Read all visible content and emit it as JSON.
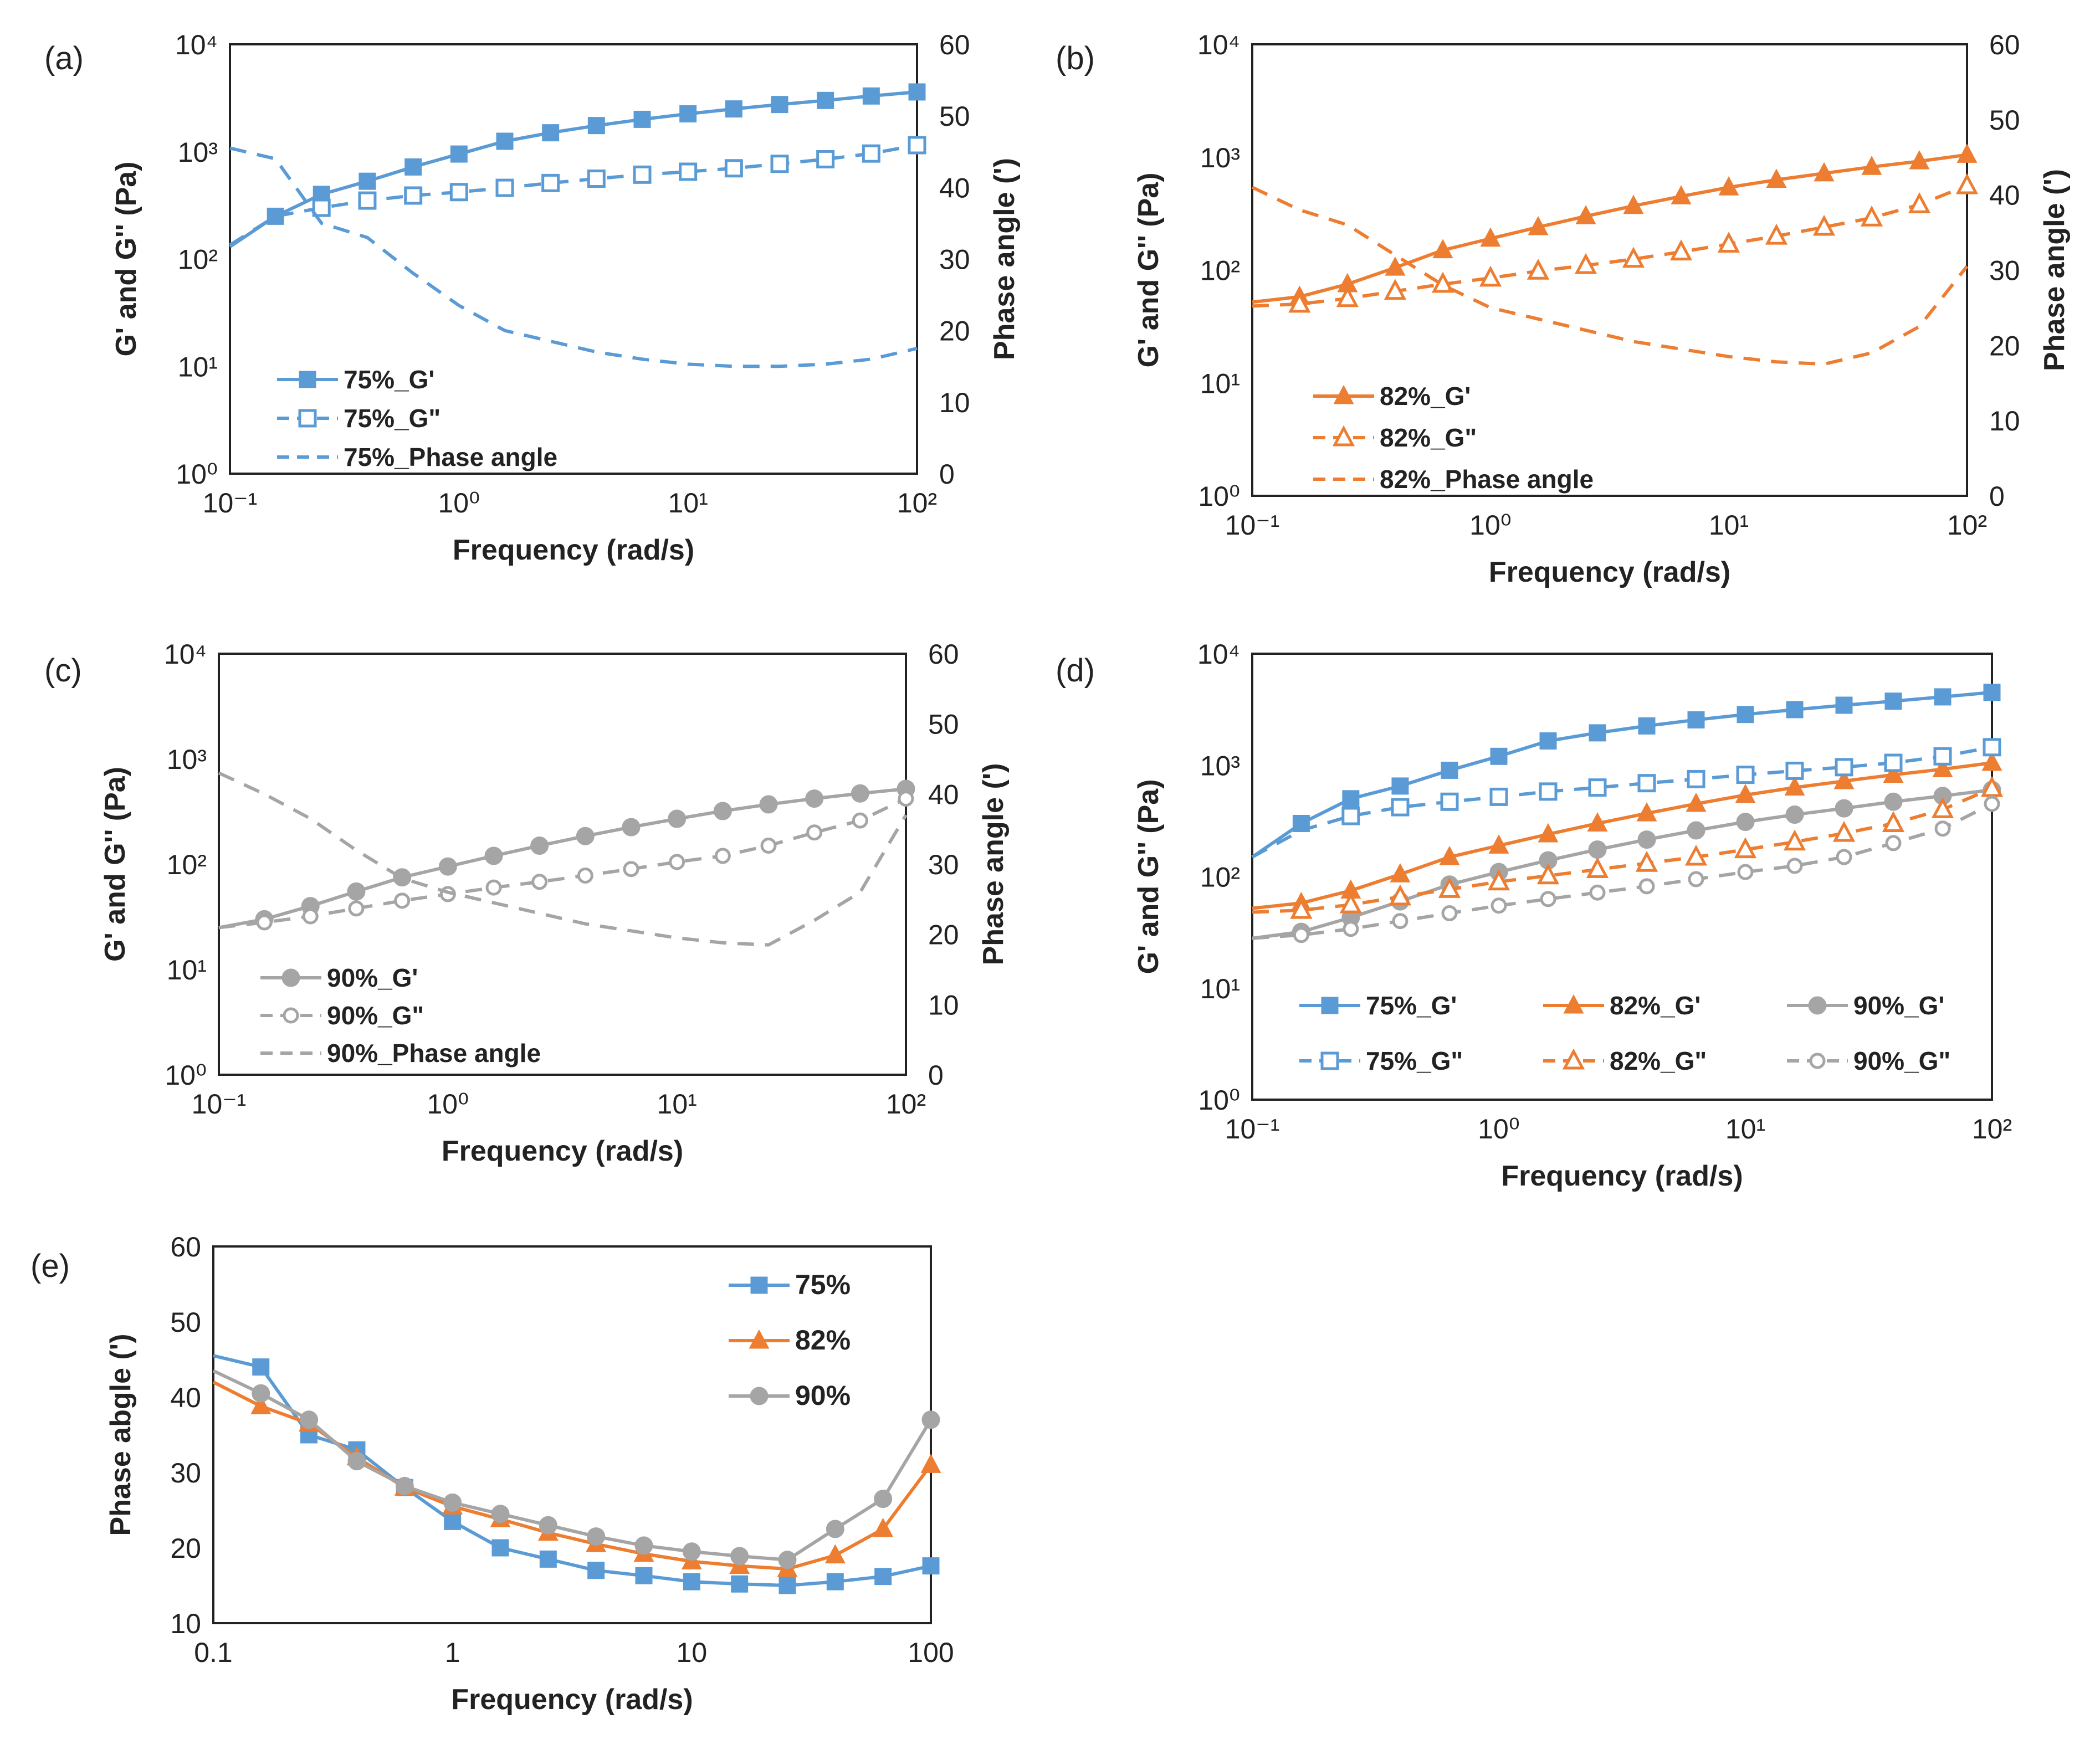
{
  "chart_data": [
    {
      "id": "a",
      "panel_label": "(a)",
      "type": "line",
      "xscale": "log",
      "xlim": [
        0.1,
        100
      ],
      "ylim_left": [
        1,
        10000
      ],
      "ylim_right": [
        0,
        60
      ],
      "xlabel": "Frequency (rad/s)",
      "ylabel_left": "G' and G'' (Pa)",
      "ylabel_right": "Phase angle (')",
      "x_tick_values": [
        0.1,
        1,
        10,
        100
      ],
      "x_tick_labels": [
        "10⁻¹",
        "10⁰",
        "10¹",
        "10²"
      ],
      "y_tick_values": [
        1,
        10,
        100,
        1000,
        10000
      ],
      "y_tick_labels": [
        "10⁰",
        "10¹",
        "10²",
        "10³",
        "10⁴"
      ],
      "y_right_tick_values": [
        0,
        10,
        20,
        30,
        40,
        50,
        60
      ],
      "y_right_tick_labels": [
        "0",
        "10",
        "20",
        "30",
        "40",
        "50",
        "60"
      ],
      "legend_position": "bottom-left",
      "series": [
        {
          "name": "75%_G'",
          "axis": "left",
          "color": "#5B9BD5",
          "dash": "solid",
          "marker": "square",
          "filled": true,
          "x": [
            0.1,
            0.158,
            0.251,
            0.398,
            0.631,
            1.0,
            1.585,
            2.512,
            3.981,
            6.31,
            10,
            15.85,
            25.12,
            39.81,
            63.1,
            100
          ],
          "y": [
            130,
            250,
            400,
            530,
            720,
            950,
            1250,
            1500,
            1750,
            2000,
            2250,
            2500,
            2750,
            3000,
            3300,
            3600
          ],
          "marker_from": 1
        },
        {
          "name": "75%_G\"",
          "axis": "left",
          "color": "#5B9BD5",
          "dash": "dashed",
          "marker": "square",
          "filled": false,
          "x": [
            0.1,
            0.158,
            0.251,
            0.398,
            0.631,
            1.0,
            1.585,
            2.512,
            3.981,
            6.31,
            10,
            15.85,
            25.12,
            39.81,
            63.1,
            100
          ],
          "y": [
            135,
            250,
            300,
            350,
            390,
            420,
            460,
            510,
            560,
            610,
            650,
            700,
            770,
            850,
            960,
            1150
          ],
          "marker_from": 2
        },
        {
          "name": "75%_Phase angle",
          "axis": "right",
          "color": "#5B9BD5",
          "dash": "dashed",
          "marker": "none",
          "filled": false,
          "x": [
            0.1,
            0.158,
            0.251,
            0.398,
            0.631,
            1.0,
            1.585,
            2.512,
            3.981,
            6.31,
            10,
            15.85,
            25.12,
            39.81,
            63.1,
            100
          ],
          "y": [
            45.5,
            44,
            35,
            33,
            28,
            23.5,
            20,
            18.5,
            17,
            16,
            15.3,
            15,
            15,
            15.3,
            16,
            17.5
          ],
          "marker_from": 99
        }
      ]
    },
    {
      "id": "b",
      "panel_label": "(b)",
      "type": "line",
      "xscale": "log",
      "xlim": [
        0.1,
        100
      ],
      "ylim_left": [
        1,
        10000
      ],
      "ylim_right": [
        0,
        60
      ],
      "xlabel": "Frequency (rad/s)",
      "ylabel_left": "G' and G'' (Pa)",
      "ylabel_right": "Phase angle (')",
      "x_tick_values": [
        0.1,
        1,
        10,
        100
      ],
      "x_tick_labels": [
        "10⁻¹",
        "10⁰",
        "10¹",
        "10²"
      ],
      "y_tick_values": [
        1,
        10,
        100,
        1000,
        10000
      ],
      "y_tick_labels": [
        "10⁰",
        "10¹",
        "10²",
        "10³",
        "10⁴"
      ],
      "y_right_tick_values": [
        0,
        10,
        20,
        30,
        40,
        50,
        60
      ],
      "y_right_tick_labels": [
        "0",
        "10",
        "20",
        "30",
        "40",
        "50",
        "60"
      ],
      "legend_position": "bottom-left",
      "series": [
        {
          "name": "82%_G'",
          "axis": "left",
          "color": "#ED7D31",
          "dash": "solid",
          "marker": "triangle",
          "filled": true,
          "x": [
            0.1,
            0.158,
            0.251,
            0.398,
            0.631,
            1.0,
            1.585,
            2.512,
            3.981,
            6.31,
            10,
            15.85,
            25.12,
            39.81,
            63.1,
            100
          ],
          "y": [
            52,
            58,
            75,
            105,
            150,
            190,
            240,
            300,
            370,
            450,
            540,
            630,
            720,
            820,
            920,
            1050
          ],
          "marker_from": 1
        },
        {
          "name": "82%_G\"",
          "axis": "left",
          "color": "#ED7D31",
          "dash": "dashed",
          "marker": "triangle",
          "filled": false,
          "x": [
            0.1,
            0.158,
            0.251,
            0.398,
            0.631,
            1.0,
            1.585,
            2.512,
            3.981,
            6.31,
            10,
            15.85,
            25.12,
            39.81,
            63.1,
            100
          ],
          "y": [
            48,
            50,
            56,
            65,
            75,
            85,
            98,
            110,
            125,
            145,
            170,
            200,
            240,
            290,
            380,
            560
          ],
          "marker_from": 1
        },
        {
          "name": "82%_Phase angle",
          "axis": "right",
          "color": "#ED7D31",
          "dash": "dashed",
          "marker": "none",
          "filled": false,
          "x": [
            0.1,
            0.158,
            0.251,
            0.398,
            0.631,
            1.0,
            1.585,
            2.512,
            3.981,
            6.31,
            10,
            15.85,
            25.12,
            39.81,
            63.1,
            100
          ],
          "y": [
            41,
            38,
            36,
            32,
            28,
            25,
            23.5,
            22,
            20.5,
            19.5,
            18.5,
            17.8,
            17.5,
            19,
            22.5,
            30.5
          ],
          "marker_from": 99
        }
      ]
    },
    {
      "id": "c",
      "panel_label": "(c)",
      "type": "line",
      "xscale": "log",
      "xlim": [
        0.1,
        100
      ],
      "ylim_left": [
        1,
        10000
      ],
      "ylim_right": [
        0,
        60
      ],
      "xlabel": "Frequency (rad/s)",
      "ylabel_left": "G' and G'' (Pa)",
      "ylabel_right": "Phase angle (')",
      "x_tick_values": [
        0.1,
        1,
        10,
        100
      ],
      "x_tick_labels": [
        "10⁻¹",
        "10⁰",
        "10¹",
        "10²"
      ],
      "y_tick_values": [
        1,
        10,
        100,
        1000,
        10000
      ],
      "y_tick_labels": [
        "10⁰",
        "10¹",
        "10²",
        "10³",
        "10⁴"
      ],
      "y_right_tick_values": [
        0,
        10,
        20,
        30,
        40,
        50,
        60
      ],
      "y_right_tick_labels": [
        "0",
        "10",
        "20",
        "30",
        "40",
        "50",
        "60"
      ],
      "legend_position": "bottom-left",
      "series": [
        {
          "name": "90%_G'",
          "axis": "left",
          "color": "#A5A5A5",
          "dash": "solid",
          "marker": "circle",
          "filled": true,
          "x": [
            0.1,
            0.158,
            0.251,
            0.398,
            0.631,
            1.0,
            1.585,
            2.512,
            3.981,
            6.31,
            10,
            15.85,
            25.12,
            39.81,
            63.1,
            100
          ],
          "y": [
            25,
            30,
            40,
            55,
            75,
            95,
            120,
            150,
            185,
            225,
            270,
            320,
            370,
            420,
            470,
            520
          ],
          "marker_from": 1
        },
        {
          "name": "90%_G\"",
          "axis": "left",
          "color": "#A5A5A5",
          "dash": "dashed",
          "marker": "circle",
          "filled": false,
          "x": [
            0.1,
            0.158,
            0.251,
            0.398,
            0.631,
            1.0,
            1.585,
            2.512,
            3.981,
            6.31,
            10,
            15.85,
            25.12,
            39.81,
            63.1,
            100
          ],
          "y": [
            25,
            28,
            32,
            38,
            45,
            52,
            60,
            68,
            78,
            90,
            105,
            120,
            150,
            200,
            260,
            420
          ],
          "marker_from": 1
        },
        {
          "name": "90%_Phase angle",
          "axis": "right",
          "color": "#A5A5A5",
          "dash": "dashed",
          "marker": "none",
          "filled": false,
          "x": [
            0.1,
            0.158,
            0.251,
            0.398,
            0.631,
            1.0,
            1.585,
            2.512,
            3.981,
            6.31,
            10,
            15.85,
            25.12,
            39.81,
            63.1,
            100
          ],
          "y": [
            43,
            40,
            36.5,
            32,
            28,
            26,
            24.5,
            23,
            21.5,
            20.5,
            19.5,
            18.8,
            18.5,
            22,
            26,
            37
          ],
          "marker_from": 99
        }
      ]
    },
    {
      "id": "d",
      "panel_label": "(d)",
      "type": "line",
      "xscale": "log",
      "xlim": [
        0.1,
        100
      ],
      "ylim_left": [
        1,
        10000
      ],
      "xlabel": "Frequency (rad/s)",
      "ylabel_left": "G' and G'' (Pa)",
      "x_tick_values": [
        0.1,
        1,
        10,
        100
      ],
      "x_tick_labels": [
        "10⁻¹",
        "10⁰",
        "10¹",
        "10²"
      ],
      "y_tick_values": [
        1,
        10,
        100,
        1000,
        10000
      ],
      "y_tick_labels": [
        "10⁰",
        "10¹",
        "10²",
        "10³",
        "10⁴"
      ],
      "legend_position": "bottom, 3 columns",
      "series": [
        {
          "name": "75%_G'",
          "axis": "left",
          "color": "#5B9BD5",
          "dash": "solid",
          "marker": "square",
          "filled": true,
          "x": [
            0.1,
            0.158,
            0.251,
            0.398,
            0.631,
            1.0,
            1.585,
            2.512,
            3.981,
            6.31,
            10,
            15.85,
            25.12,
            39.81,
            63.1,
            100
          ],
          "y": [
            150,
            300,
            500,
            650,
            900,
            1200,
            1650,
            1950,
            2250,
            2550,
            2850,
            3150,
            3450,
            3750,
            4100,
            4500
          ],
          "marker_from": 1
        },
        {
          "name": "82%_G'",
          "axis": "left",
          "color": "#ED7D31",
          "dash": "solid",
          "marker": "triangle",
          "filled": true,
          "x": [
            0.1,
            0.158,
            0.251,
            0.398,
            0.631,
            1.0,
            1.585,
            2.512,
            3.981,
            6.31,
            10,
            15.85,
            25.12,
            39.81,
            63.1,
            100
          ],
          "y": [
            52,
            58,
            75,
            105,
            150,
            190,
            240,
            300,
            370,
            450,
            540,
            630,
            720,
            820,
            920,
            1050
          ],
          "marker_from": 1
        },
        {
          "name": "90%_G'",
          "axis": "left",
          "color": "#A5A5A5",
          "dash": "solid",
          "marker": "circle",
          "filled": true,
          "x": [
            0.1,
            0.158,
            0.251,
            0.398,
            0.631,
            1.0,
            1.585,
            2.512,
            3.981,
            6.31,
            10,
            15.85,
            25.12,
            39.81,
            63.1,
            100
          ],
          "y": [
            28,
            32,
            43,
            60,
            85,
            110,
            140,
            175,
            215,
            260,
            310,
            360,
            410,
            470,
            530,
            600
          ],
          "marker_from": 1
        },
        {
          "name": "75%_G\"",
          "axis": "left",
          "color": "#5B9BD5",
          "dash": "dashed",
          "marker": "square",
          "filled": false,
          "x": [
            0.1,
            0.158,
            0.251,
            0.398,
            0.631,
            1.0,
            1.585,
            2.512,
            3.981,
            6.31,
            10,
            15.85,
            25.12,
            39.81,
            63.1,
            100
          ],
          "y": [
            150,
            260,
            350,
            420,
            470,
            520,
            580,
            630,
            690,
            750,
            820,
            890,
            960,
            1050,
            1200,
            1450
          ],
          "marker_from": 2
        },
        {
          "name": "82%_G\"",
          "axis": "left",
          "color": "#ED7D31",
          "dash": "dashed",
          "marker": "triangle",
          "filled": false,
          "x": [
            0.1,
            0.158,
            0.251,
            0.398,
            0.631,
            1.0,
            1.585,
            2.512,
            3.981,
            6.31,
            10,
            15.85,
            25.12,
            39.81,
            63.1,
            100
          ],
          "y": [
            48,
            50,
            56,
            66,
            77,
            90,
            102,
            116,
            132,
            150,
            175,
            205,
            245,
            300,
            400,
            620
          ],
          "marker_from": 1
        },
        {
          "name": "90%_G\"",
          "axis": "left",
          "color": "#A5A5A5",
          "dash": "dashed",
          "marker": "circle",
          "filled": false,
          "x": [
            0.1,
            0.158,
            0.251,
            0.398,
            0.631,
            1.0,
            1.585,
            2.512,
            3.981,
            6.31,
            10,
            15.85,
            25.12,
            39.81,
            63.1,
            100
          ],
          "y": [
            28,
            30,
            34,
            40,
            47,
            55,
            63,
            72,
            82,
            95,
            110,
            125,
            150,
            200,
            270,
            450
          ],
          "marker_from": 1
        }
      ]
    },
    {
      "id": "e",
      "panel_label": "(e)",
      "type": "line",
      "xscale": "log",
      "xlim": [
        0.1,
        100
      ],
      "ylim_left": [
        10,
        60
      ],
      "xlabel": "Frequency (rad/s)",
      "ylabel_left": "Phase abgle (')",
      "x_tick_values": [
        0.1,
        1,
        10,
        100
      ],
      "x_tick_labels": [
        "0.1",
        "1",
        "10",
        "100"
      ],
      "y_tick_values": [
        10,
        20,
        30,
        40,
        50,
        60
      ],
      "y_tick_labels": [
        "10",
        "20",
        "30",
        "40",
        "50",
        "60"
      ],
      "legend_position": "top-right",
      "series": [
        {
          "name": "75%",
          "axis": "left",
          "color": "#5B9BD5",
          "dash": "solid",
          "marker": "square",
          "filled": true,
          "x": [
            0.1,
            0.158,
            0.251,
            0.398,
            0.631,
            1.0,
            1.585,
            2.512,
            3.981,
            6.31,
            10,
            15.85,
            25.12,
            39.81,
            63.1,
            100
          ],
          "y": [
            45.5,
            44,
            35,
            33,
            28,
            23.5,
            20,
            18.5,
            17,
            16.3,
            15.5,
            15.2,
            15,
            15.5,
            16.2,
            17.6
          ],
          "marker_from": 1
        },
        {
          "name": "82%",
          "axis": "left",
          "color": "#ED7D31",
          "dash": "solid",
          "marker": "triangle",
          "filled": true,
          "x": [
            0.1,
            0.158,
            0.251,
            0.398,
            0.631,
            1.0,
            1.585,
            2.512,
            3.981,
            6.31,
            10,
            15.85,
            25.12,
            39.81,
            63.1,
            100
          ],
          "y": [
            42,
            38.8,
            36.5,
            32,
            28,
            25.5,
            23.8,
            22,
            20.5,
            19.2,
            18.2,
            17.6,
            17.2,
            19,
            22.5,
            31
          ],
          "marker_from": 1
        },
        {
          "name": "90%",
          "axis": "left",
          "color": "#A5A5A5",
          "dash": "solid",
          "marker": "circle",
          "filled": true,
          "x": [
            0.1,
            0.158,
            0.251,
            0.398,
            0.631,
            1.0,
            1.585,
            2.512,
            3.981,
            6.31,
            10,
            15.85,
            25.12,
            39.81,
            63.1,
            100
          ],
          "y": [
            43.5,
            40.5,
            37,
            31.5,
            28.2,
            26,
            24.5,
            23,
            21.5,
            20.3,
            19.5,
            18.9,
            18.4,
            22.5,
            26.5,
            37
          ],
          "marker_from": 1
        }
      ]
    }
  ]
}
